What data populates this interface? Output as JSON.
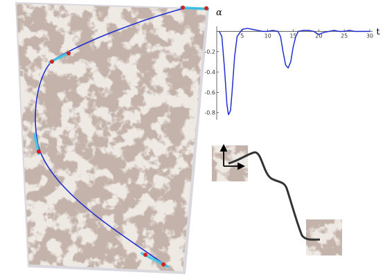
{
  "chart_data": {
    "type": "line",
    "y_label": "α",
    "x_label": "t",
    "x": [
      0.5,
      1,
      1.5,
      2,
      2.3,
      2.7,
      3,
      3.5,
      4,
      5,
      6,
      7,
      8,
      9,
      10,
      11,
      12,
      12.5,
      13,
      13.5,
      14,
      14.5,
      15,
      15.5,
      16,
      17,
      18,
      19,
      20,
      21,
      22,
      23,
      24,
      25,
      26,
      27,
      28,
      29,
      30
    ],
    "series": [
      {
        "color": "#1f2fd0",
        "values": [
          0,
          -0.05,
          -0.35,
          -0.72,
          -0.82,
          -0.78,
          -0.6,
          -0.25,
          -0.05,
          0.02,
          0.03,
          0.02,
          0.01,
          0,
          0,
          0.01,
          0,
          -0.05,
          -0.2,
          -0.33,
          -0.36,
          -0.3,
          -0.15,
          -0.05,
          0,
          0.01,
          0.01,
          0,
          -0.03,
          -0.01,
          0,
          0.01,
          0,
          0,
          0.01,
          0,
          0,
          0,
          0
        ]
      }
    ],
    "xlim": [
      0,
      30
    ],
    "ylim": [
      -0.87,
      0.05
    ],
    "xticks": [
      5,
      10,
      15,
      20,
      25,
      30
    ],
    "yticks": [
      -0.2,
      -0.4,
      -0.6,
      -0.8
    ]
  }
}
